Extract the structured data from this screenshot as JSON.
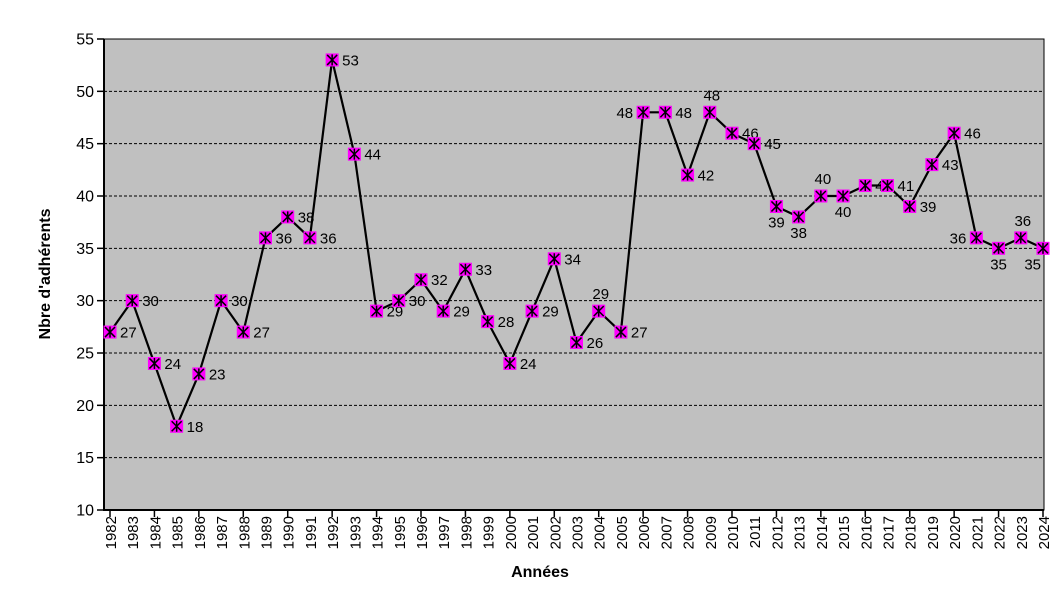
{
  "chart_data": {
    "type": "line",
    "title": "",
    "xlabel": "Années",
    "ylabel": "Nbre d'adhérents",
    "x": [
      "1982",
      "1983",
      "1984",
      "1985",
      "1986",
      "1987",
      "1988",
      "1989",
      "1990",
      "1991",
      "1992",
      "1993",
      "1994",
      "1995",
      "1996",
      "1997",
      "1998",
      "1999",
      "2000",
      "2001",
      "2002",
      "2003",
      "2004",
      "2005",
      "2006",
      "2007",
      "2008",
      "2009",
      "2010",
      "2011",
      "2012",
      "2013",
      "2014",
      "2015",
      "2016",
      "2017",
      "2018",
      "2019",
      "2020",
      "2021",
      "2022",
      "2023",
      "2024"
    ],
    "values": [
      27,
      30,
      24,
      18,
      23,
      30,
      27,
      36,
      38,
      36,
      53,
      44,
      29,
      30,
      32,
      29,
      33,
      28,
      24,
      29,
      34,
      26,
      29,
      27,
      48,
      48,
      42,
      48,
      46,
      45,
      39,
      38,
      40,
      40,
      41,
      41,
      39,
      43,
      46,
      36,
      35,
      36,
      35
    ],
    "label_positions": [
      "right",
      "right",
      "right",
      "right",
      "right",
      "right",
      "right",
      "right",
      "right",
      "right",
      "right",
      "right",
      "right",
      "right",
      "right",
      "right",
      "right",
      "right",
      "right",
      "right",
      "right",
      "right",
      "above",
      "right",
      "left",
      "right",
      "right",
      "above",
      "right",
      "right",
      "below",
      "below",
      "above",
      "below",
      "right",
      "right",
      "right",
      "right",
      "right",
      "left",
      "below",
      "above",
      "below-left"
    ],
    "ylim": [
      10,
      55
    ],
    "yticks": [
      10,
      15,
      20,
      25,
      30,
      35,
      40,
      45,
      50,
      55
    ],
    "xtick_mark_every": 2,
    "grid": {
      "horizontal": true,
      "style": "dashed"
    },
    "legend": "none",
    "data_labels_visible": true,
    "marker_shape": "square-star",
    "colors": {
      "plot_bg": "#c0c0c0",
      "outer_bg": "#ffffff",
      "line": "#000000",
      "marker_fill": "#ff00ff",
      "marker_cross": "#000000",
      "grid_line": "#000000",
      "text": "#000000"
    }
  }
}
